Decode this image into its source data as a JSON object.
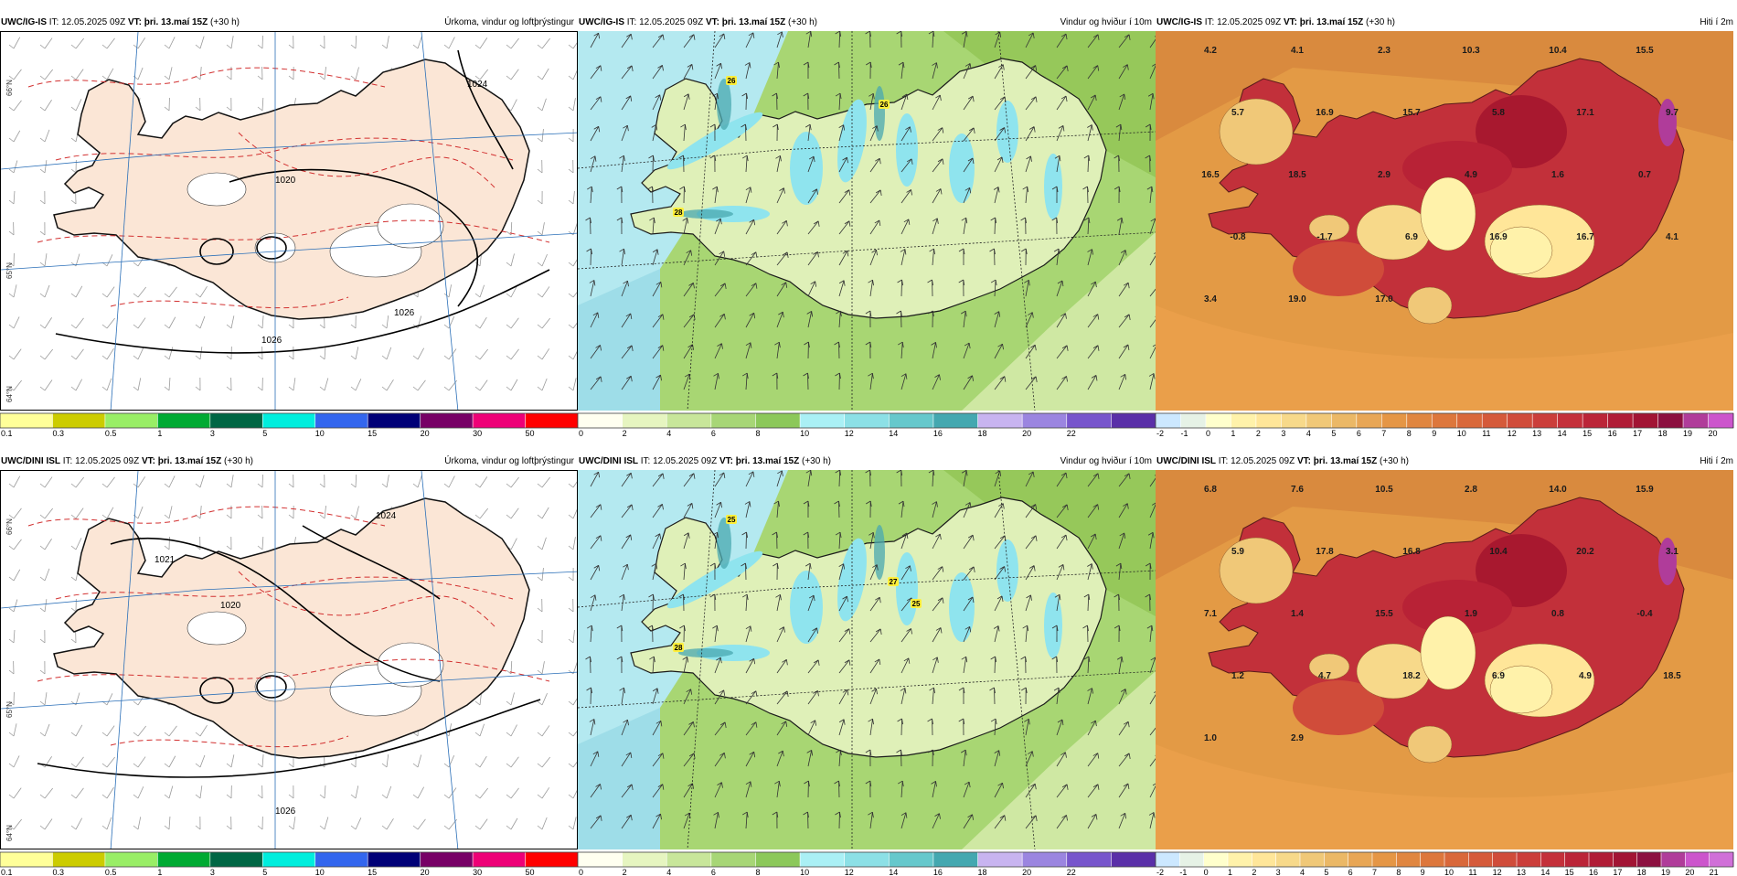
{
  "rows": [
    {
      "model": "UWC/IG-IS",
      "init_label": "IT:",
      "init": "12.05.2025 09Z",
      "valid_label": "VT:",
      "valid": "þri. 13.maí 15Z",
      "lead": "(+30 h)"
    },
    {
      "model": "UWC/DINI ISL",
      "init_label": "IT:",
      "init": "12.05.2025 09Z",
      "valid_label": "VT:",
      "valid": "þri. 13.maí 15Z",
      "lead": "(+30 h)"
    }
  ],
  "panels": {
    "precip": {
      "title": "Úrkoma, vindur og loftþrýstingur",
      "ticks": [
        "0.1",
        "0.3",
        "0.5",
        "1",
        "3",
        "5",
        "10",
        "15",
        "20",
        "30",
        "50"
      ],
      "colors": [
        "#ffff99",
        "#cccc00",
        "#99ee66",
        "#00aa33",
        "#006644",
        "#00eedd",
        "#3366ee",
        "#000077",
        "#770066",
        "#ee0077",
        "#ff0000"
      ],
      "pressure_labels": [
        "1024",
        "1026",
        "1020",
        "1021"
      ],
      "lat_labels": [
        "66°N",
        "65°N",
        "64°N"
      ]
    },
    "wind": {
      "title": "Vindur og hviður í 10m",
      "ticks": [
        "0",
        "2",
        "4",
        "6",
        "8",
        "10",
        "12",
        "14",
        "16",
        "18",
        "20",
        "22"
      ],
      "colors": [
        "#fffff0",
        "#e6f5c0",
        "#c8e69a",
        "#a7d676",
        "#8cc85a",
        "#aaf0f5",
        "#8ce0e6",
        "#66c8cc",
        "#44a8b0",
        "#c8b4f0",
        "#9b85e0",
        "#7755cc",
        "#5a2fa8"
      ],
      "gust_labels_row1": [
        "26",
        "26",
        "28"
      ],
      "gust_labels_row2": [
        "25",
        "27",
        "25",
        "28"
      ]
    },
    "temp": {
      "title": "Hiti í 2m",
      "ticks": [
        "-2",
        "-1",
        "0",
        "1",
        "2",
        "3",
        "4",
        "5",
        "6",
        "7",
        "8",
        "9",
        "10",
        "11",
        "12",
        "13",
        "14",
        "15",
        "16",
        "17",
        "18",
        "19",
        "20"
      ],
      "ticks_row2": [
        "-2",
        "-1",
        "0",
        "1",
        "2",
        "3",
        "4",
        "5",
        "6",
        "7",
        "8",
        "9",
        "10",
        "11",
        "12",
        "13",
        "14",
        "15",
        "16",
        "17",
        "18",
        "19",
        "20",
        "21"
      ],
      "colors": [
        "#cce8ff",
        "#e6f2e6",
        "#ffffcc",
        "#fff2aa",
        "#ffe699",
        "#f7d98a",
        "#f0c878",
        "#ebb866",
        "#e8a655",
        "#e59645",
        "#e08640",
        "#dd773c",
        "#d9683a",
        "#d55a3a",
        "#d04c3a",
        "#cb3e3a",
        "#c4303a",
        "#bb2538",
        "#b01c36",
        "#a21434",
        "#8c1040",
        "#b03c9a",
        "#cc55cc"
      ],
      "row1_values": [
        "4.2",
        "4.1",
        "2.3",
        "10.3",
        "10.4",
        "15.5",
        "5.7",
        "16.9",
        "15.7",
        "5.8",
        "17.1",
        "9.7",
        "16.5",
        "18.5",
        "2.9",
        "4.9",
        "1.6",
        "0.7",
        "-0.8",
        "-1.7",
        "6.9",
        "16.9",
        "16.7",
        "4.1",
        "3.4",
        "19.0",
        "17.0"
      ],
      "row2_values": [
        "6.8",
        "7.6",
        "10.5",
        "2.8",
        "14.0",
        "15.9",
        "5.9",
        "17.8",
        "16.8",
        "10.4",
        "20.2",
        "3.1",
        "7.1",
        "1.4",
        "15.5",
        "1.9",
        "0.8",
        "-0.4",
        "1.2",
        "4.7",
        "18.2",
        "6.9",
        "4.9",
        "18.5",
        "1.0",
        "2.9"
      ]
    }
  },
  "colors": {
    "land_precip": "#fbe6d6",
    "sea_precip": "#ffffff",
    "coast": "#111111",
    "isobar": "#000000",
    "dashed_precip": "#d23030",
    "grid_blue": "#2a6fb8"
  }
}
